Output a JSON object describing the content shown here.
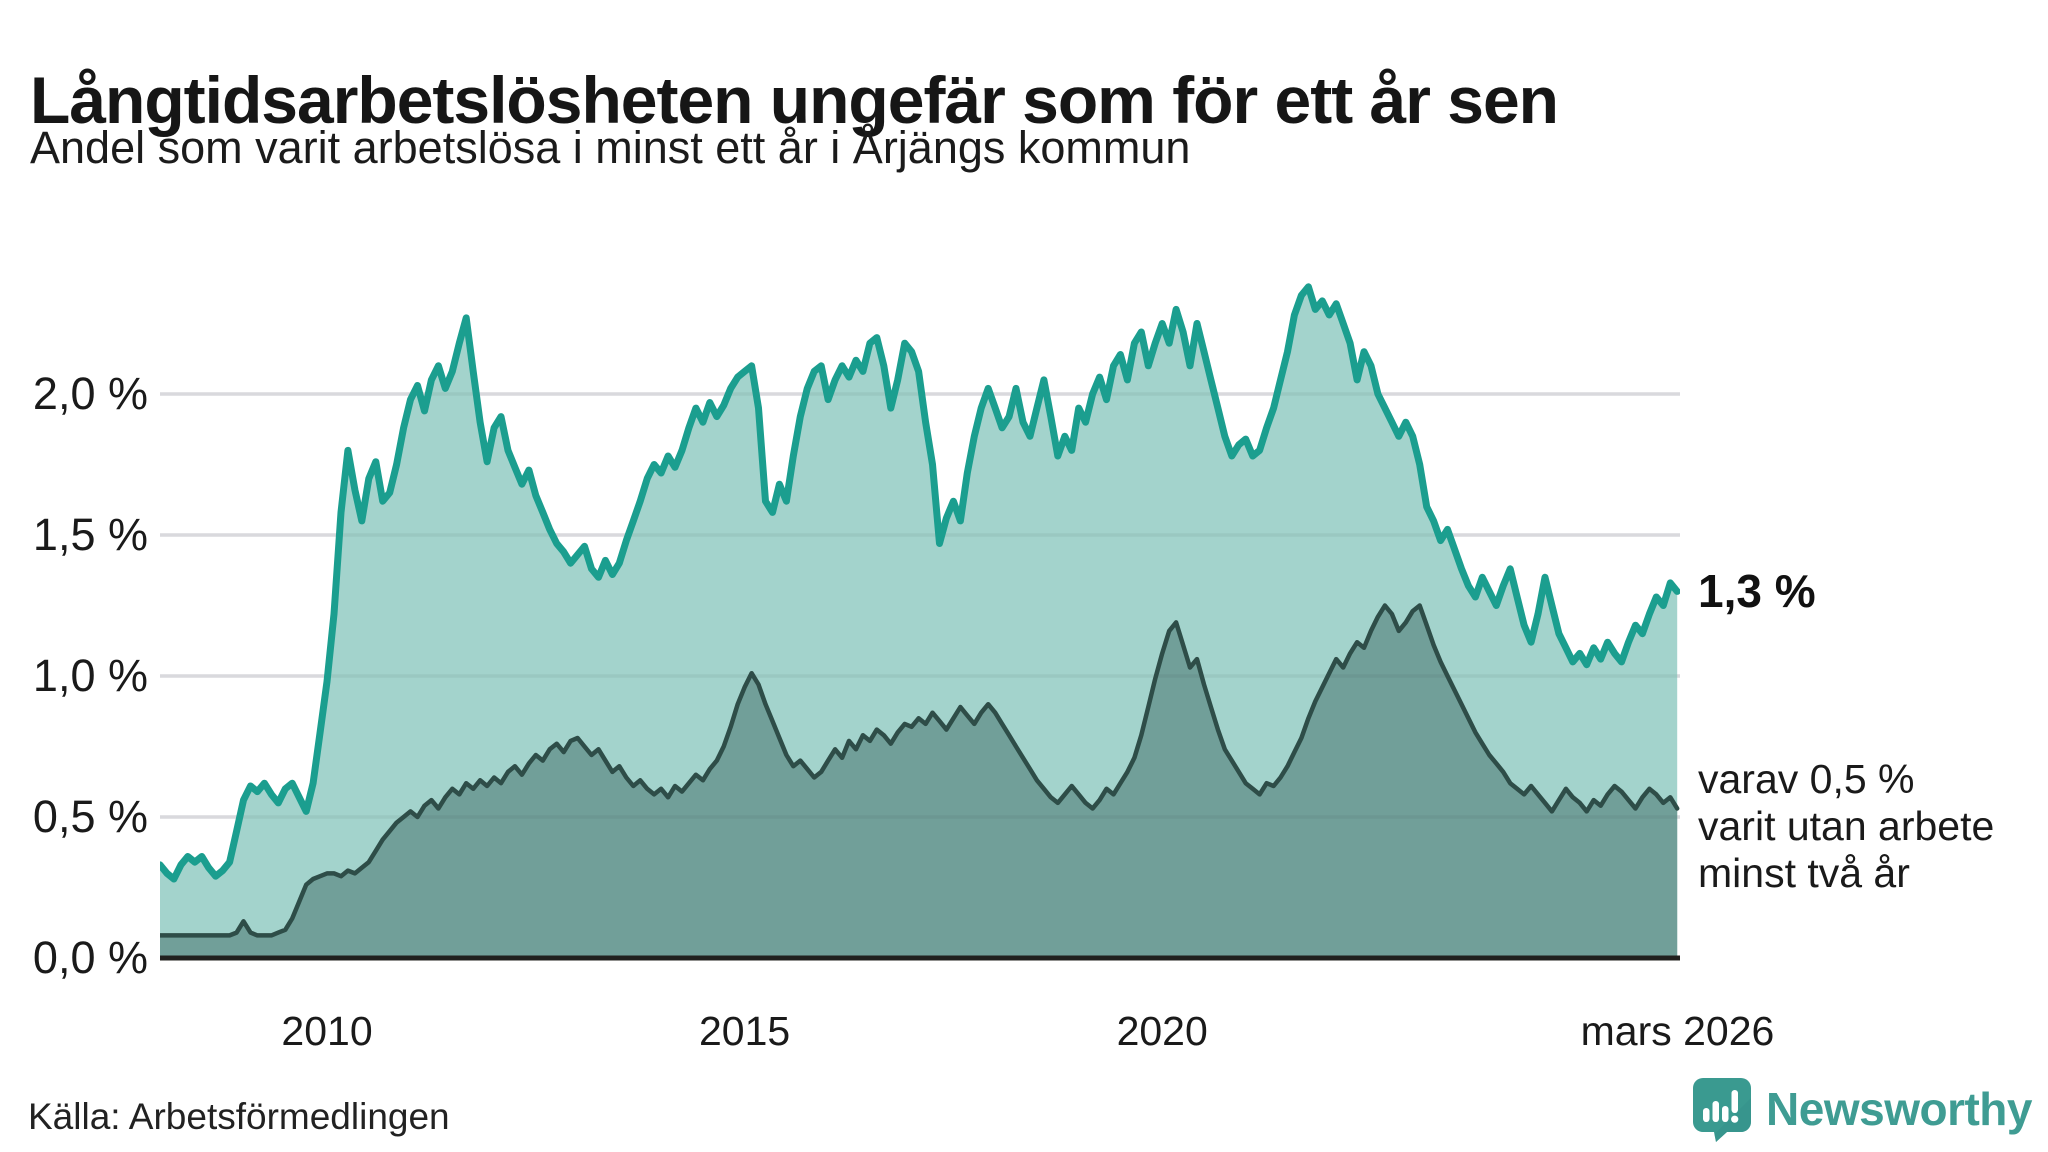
{
  "header": {
    "title": "Långtidsarbetslösheten ungefär som för ett år sen",
    "subtitle": "Andel som varit arbetslösa i minst ett år i Årjängs kommun"
  },
  "chart_data": {
    "type": "area",
    "title": "Långtidsarbetslösheten ungefär som för ett år sen",
    "subtitle": "Andel som varit arbetslösa i minst ett år i Årjängs kommun",
    "grid": true,
    "legend_position": "none",
    "x_start_year": 2008,
    "x_step_months": 1,
    "xlim": [
      2008,
      2026.2
    ],
    "ylim": [
      0,
      2.5
    ],
    "x_ticks": [
      {
        "label": "2010",
        "year": 2010
      },
      {
        "label": "2015",
        "year": 2015
      },
      {
        "label": "2020",
        "year": 2020
      },
      {
        "label": "mars 2026",
        "year": 2026.17
      }
    ],
    "y_ticks": [
      {
        "label": "0,0 %",
        "value": 0.0
      },
      {
        "label": "0,5 %",
        "value": 0.5
      },
      {
        "label": "1,0 %",
        "value": 1.0
      },
      {
        "label": "1,5 %",
        "value": 1.5
      },
      {
        "label": "2,0 %",
        "value": 2.0
      }
    ],
    "series": [
      {
        "name": "Andel som varit arbetslösa i minst ett år",
        "line_color": "#1b9e8f",
        "fill_color": "#9fd1ca",
        "values": [
          0.33,
          0.3,
          0.28,
          0.33,
          0.36,
          0.34,
          0.36,
          0.32,
          0.29,
          0.31,
          0.34,
          0.45,
          0.56,
          0.61,
          0.59,
          0.62,
          0.58,
          0.55,
          0.6,
          0.62,
          0.57,
          0.52,
          0.62,
          0.8,
          0.98,
          1.22,
          1.58,
          1.8,
          1.66,
          1.55,
          1.7,
          1.76,
          1.62,
          1.65,
          1.75,
          1.88,
          1.98,
          2.03,
          1.94,
          2.05,
          2.1,
          2.02,
          2.08,
          2.18,
          2.27,
          2.08,
          1.9,
          1.76,
          1.88,
          1.92,
          1.8,
          1.74,
          1.68,
          1.73,
          1.64,
          1.58,
          1.52,
          1.47,
          1.44,
          1.4,
          1.43,
          1.46,
          1.38,
          1.35,
          1.41,
          1.36,
          1.4,
          1.48,
          1.55,
          1.62,
          1.7,
          1.75,
          1.72,
          1.78,
          1.74,
          1.8,
          1.88,
          1.95,
          1.9,
          1.97,
          1.92,
          1.96,
          2.02,
          2.06,
          2.08,
          2.1,
          1.95,
          1.62,
          1.58,
          1.68,
          1.62,
          1.78,
          1.92,
          2.02,
          2.08,
          2.1,
          1.98,
          2.05,
          2.1,
          2.06,
          2.12,
          2.08,
          2.18,
          2.2,
          2.1,
          1.95,
          2.05,
          2.18,
          2.15,
          2.08,
          1.9,
          1.75,
          1.47,
          1.56,
          1.62,
          1.55,
          1.72,
          1.85,
          1.95,
          2.02,
          1.95,
          1.88,
          1.92,
          2.02,
          1.9,
          1.85,
          1.95,
          2.05,
          1.92,
          1.78,
          1.85,
          1.8,
          1.95,
          1.9,
          2.0,
          2.06,
          1.98,
          2.1,
          2.14,
          2.05,
          2.18,
          2.22,
          2.1,
          2.18,
          2.25,
          2.18,
          2.3,
          2.22,
          2.1,
          2.25,
          2.15,
          2.05,
          1.95,
          1.85,
          1.78,
          1.82,
          1.84,
          1.78,
          1.8,
          1.88,
          1.95,
          2.05,
          2.15,
          2.28,
          2.35,
          2.38,
          2.3,
          2.33,
          2.28,
          2.32,
          2.25,
          2.18,
          2.05,
          2.15,
          2.1,
          2.0,
          1.95,
          1.9,
          1.85,
          1.9,
          1.85,
          1.75,
          1.6,
          1.55,
          1.48,
          1.52,
          1.45,
          1.38,
          1.32,
          1.28,
          1.35,
          1.3,
          1.25,
          1.32,
          1.38,
          1.28,
          1.18,
          1.12,
          1.22,
          1.35,
          1.25,
          1.15,
          1.1,
          1.05,
          1.08,
          1.04,
          1.1,
          1.06,
          1.12,
          1.08,
          1.05,
          1.12,
          1.18,
          1.15,
          1.22,
          1.28,
          1.25,
          1.33,
          1.3
        ]
      },
      {
        "name": "varav arbetslösa minst två år",
        "line_color": "#2e4d48",
        "fill_color": "#6f9d97",
        "values": [
          0.08,
          0.08,
          0.08,
          0.08,
          0.08,
          0.08,
          0.08,
          0.08,
          0.08,
          0.08,
          0.08,
          0.09,
          0.13,
          0.09,
          0.08,
          0.08,
          0.08,
          0.09,
          0.1,
          0.14,
          0.2,
          0.26,
          0.28,
          0.29,
          0.3,
          0.3,
          0.29,
          0.31,
          0.3,
          0.32,
          0.34,
          0.38,
          0.42,
          0.45,
          0.48,
          0.5,
          0.52,
          0.5,
          0.54,
          0.56,
          0.53,
          0.57,
          0.6,
          0.58,
          0.62,
          0.6,
          0.63,
          0.61,
          0.64,
          0.62,
          0.66,
          0.68,
          0.65,
          0.69,
          0.72,
          0.7,
          0.74,
          0.76,
          0.73,
          0.77,
          0.78,
          0.75,
          0.72,
          0.74,
          0.7,
          0.66,
          0.68,
          0.64,
          0.61,
          0.63,
          0.6,
          0.58,
          0.6,
          0.57,
          0.61,
          0.59,
          0.62,
          0.65,
          0.63,
          0.67,
          0.7,
          0.75,
          0.82,
          0.9,
          0.96,
          1.01,
          0.97,
          0.9,
          0.84,
          0.78,
          0.72,
          0.68,
          0.7,
          0.67,
          0.64,
          0.66,
          0.7,
          0.74,
          0.71,
          0.77,
          0.74,
          0.79,
          0.77,
          0.81,
          0.79,
          0.76,
          0.8,
          0.83,
          0.82,
          0.85,
          0.83,
          0.87,
          0.84,
          0.81,
          0.85,
          0.89,
          0.86,
          0.83,
          0.87,
          0.9,
          0.87,
          0.83,
          0.79,
          0.75,
          0.71,
          0.67,
          0.63,
          0.6,
          0.57,
          0.55,
          0.58,
          0.61,
          0.58,
          0.55,
          0.53,
          0.56,
          0.6,
          0.58,
          0.62,
          0.66,
          0.71,
          0.79,
          0.89,
          0.99,
          1.08,
          1.16,
          1.19,
          1.11,
          1.03,
          1.06,
          0.97,
          0.89,
          0.81,
          0.74,
          0.7,
          0.66,
          0.62,
          0.6,
          0.58,
          0.62,
          0.61,
          0.64,
          0.68,
          0.73,
          0.78,
          0.85,
          0.91,
          0.96,
          1.01,
          1.06,
          1.03,
          1.08,
          1.12,
          1.1,
          1.16,
          1.21,
          1.25,
          1.22,
          1.16,
          1.19,
          1.23,
          1.25,
          1.18,
          1.11,
          1.05,
          1.0,
          0.95,
          0.9,
          0.85,
          0.8,
          0.76,
          0.72,
          0.69,
          0.66,
          0.62,
          0.6,
          0.58,
          0.61,
          0.58,
          0.55,
          0.52,
          0.56,
          0.6,
          0.57,
          0.55,
          0.52,
          0.56,
          0.54,
          0.58,
          0.61,
          0.59,
          0.56,
          0.53,
          0.57,
          0.6,
          0.58,
          0.55,
          0.57,
          0.53
        ]
      }
    ],
    "annotations": [
      {
        "text": "1,3 %",
        "value": 1.3,
        "bold": true
      },
      {
        "lines": [
          "varav 0,5 %",
          "varit utan arbete",
          "minst två år"
        ],
        "value": 0.5
      }
    ]
  },
  "footer": {
    "source": "Källa: Arbetsförmedlingen",
    "logo_text": "Newsworthy"
  },
  "colors": {
    "accent_teal": "#1b9e8f",
    "light_fill": "#9fd1ca",
    "dark_fill": "#6f9d97",
    "dark_line": "#2e4d48",
    "gridline": "#e4e4e8",
    "baseline": "#20201e",
    "logo_teal": "#3f9c93",
    "text_dark": "#161616"
  }
}
